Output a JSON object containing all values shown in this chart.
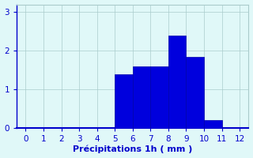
{
  "bar_left_edges": [
    5,
    6,
    7,
    8,
    9,
    10
  ],
  "bar_heights": [
    1.4,
    1.6,
    1.6,
    2.4,
    1.85,
    0.2
  ],
  "bar_color": "#0000dd",
  "bar_edge_color": "#0000aa",
  "bar_width": 1.0,
  "background_color": "#e0f8f8",
  "grid_color": "#aacccc",
  "xlabel": "Précipitations 1h ( mm )",
  "xlabel_color": "#0000cc",
  "tick_color": "#0000cc",
  "axis_color": "#0000cc",
  "xlim": [
    -0.5,
    12.5
  ],
  "ylim": [
    0,
    3.2
  ],
  "xticks": [
    0,
    1,
    2,
    3,
    4,
    5,
    6,
    7,
    8,
    9,
    10,
    11,
    12
  ],
  "yticks": [
    0,
    1,
    2,
    3
  ],
  "label_fontsize": 8,
  "tick_fontsize": 7.5
}
